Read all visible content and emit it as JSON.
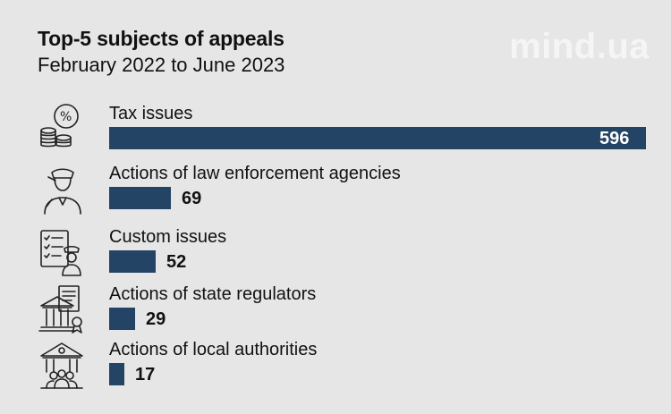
{
  "header": {
    "title": "Top-5 subjects of appeals",
    "subtitle": "February 2022 to June 2023",
    "watermark": "mind.ua"
  },
  "chart_data": {
    "type": "bar",
    "orientation": "horizontal",
    "title": "Top-5 subjects of appeals",
    "subtitle": "February 2022 to June 2023",
    "categories": [
      "Tax issues",
      "Actions of law enforcement agencies",
      "Custom issues",
      "Actions of state regulators",
      "Actions of local authorities"
    ],
    "values": [
      596,
      69,
      52,
      29,
      17
    ],
    "icons": [
      "percent-coins-icon",
      "police-officer-icon",
      "customs-officer-checklist-icon",
      "government-building-document-icon",
      "town-hall-people-icon"
    ],
    "xlim": [
      0,
      596
    ],
    "bar_color": "#244466",
    "grid": false,
    "legend": "none"
  }
}
